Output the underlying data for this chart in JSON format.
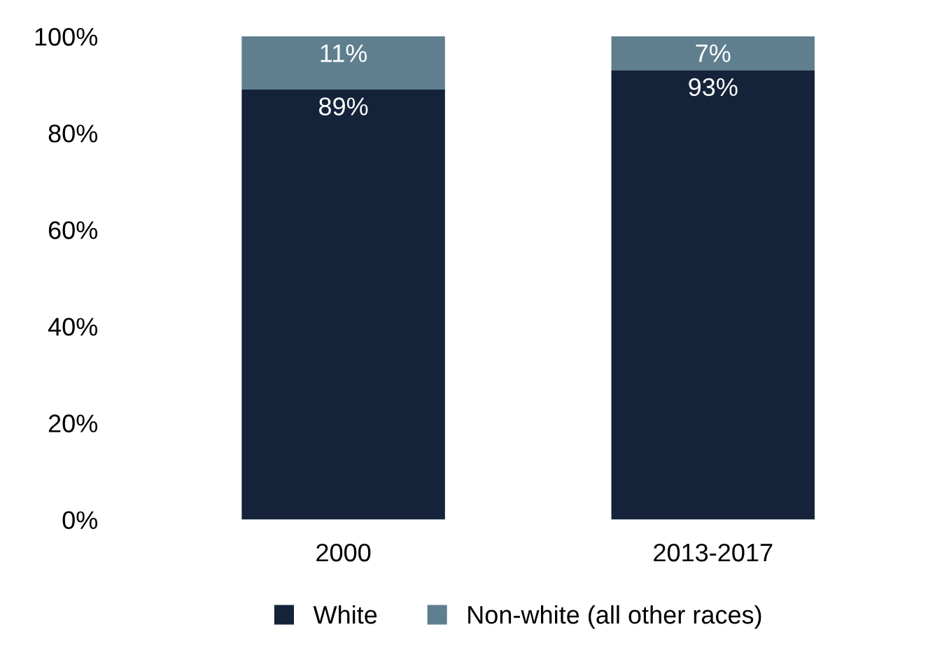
{
  "chart_data": {
    "type": "bar",
    "stacked": true,
    "categories": [
      "2000",
      "2013-2017"
    ],
    "series": [
      {
        "name": "White",
        "color": "#14233a",
        "values": [
          89,
          93
        ],
        "value_labels": [
          "89%",
          "93%"
        ]
      },
      {
        "name": "Non-white (all other races)",
        "color": "#5f7f8f",
        "values": [
          11,
          7
        ],
        "value_labels": [
          "11%",
          "7%"
        ]
      }
    ],
    "ylim": [
      0,
      100
    ],
    "yticks": [
      {
        "value": 0,
        "label": "0%"
      },
      {
        "value": 20,
        "label": "20%"
      },
      {
        "value": 40,
        "label": "40%"
      },
      {
        "value": 60,
        "label": "60%"
      },
      {
        "value": 80,
        "label": "80%"
      },
      {
        "value": 100,
        "label": "100%"
      }
    ],
    "grid": false,
    "legend": "bottom"
  }
}
